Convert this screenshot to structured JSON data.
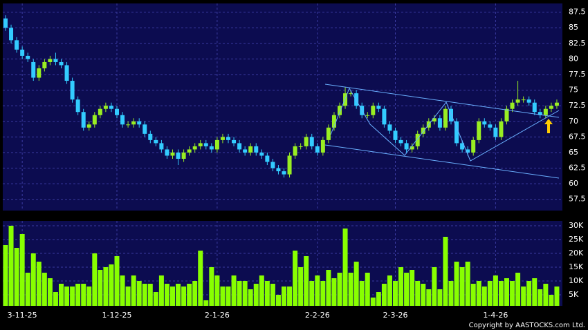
{
  "chart_data": {
    "type": "candlestick",
    "categories": [
      null,
      null,
      null,
      "3-11-25",
      null,
      null,
      null,
      null,
      null,
      null,
      null,
      null,
      null,
      null,
      null,
      null,
      null,
      null,
      null,
      null,
      "1-12-25",
      null,
      null,
      null,
      null,
      null,
      null,
      null,
      null,
      null,
      null,
      null,
      null,
      null,
      null,
      null,
      null,
      null,
      "2-1-26",
      null,
      null,
      null,
      null,
      null,
      null,
      null,
      null,
      null,
      null,
      null,
      null,
      null,
      null,
      null,
      null,
      null,
      "2-2-26",
      null,
      null,
      null,
      null,
      null,
      null,
      null,
      null,
      null,
      null,
      null,
      null,
      null,
      "2-3-26",
      null,
      null,
      null,
      null,
      null,
      null,
      null,
      null,
      null,
      null,
      null,
      null,
      null,
      null,
      null,
      null,
      null,
      "1-4-26",
      null,
      null,
      null,
      null,
      null,
      null,
      null,
      null,
      null,
      null,
      null
    ],
    "open": [
      86.5,
      85,
      83,
      81.5,
      80.5,
      79.5,
      77,
      78.5,
      79.5,
      80,
      79.5,
      79,
      76.5,
      73.5,
      71.5,
      69,
      69.5,
      71,
      72,
      72.5,
      72,
      71,
      69.5,
      69.5,
      70,
      69.5,
      68,
      67,
      66.5,
      65.5,
      64.5,
      65,
      64,
      65,
      65.5,
      66,
      66.5,
      66,
      65.5,
      67,
      67.5,
      67,
      66.5,
      65.5,
      65,
      66,
      65,
      64.5,
      63.5,
      62.5,
      62,
      61.5,
      64.5,
      66,
      66,
      67.5,
      66,
      65,
      67,
      69,
      71,
      72.5,
      74.5,
      74.5,
      72.5,
      71,
      71,
      72.5,
      72,
      69.5,
      68.5,
      67,
      66.5,
      65.5,
      66,
      68,
      69,
      70,
      70.5,
      69,
      72,
      70,
      66.5,
      65.5,
      65,
      67,
      70,
      69.5,
      69,
      67.5,
      70,
      72,
      73,
      73.5,
      73.5,
      73,
      71.5,
      71,
      72,
      72.5
    ],
    "high": [
      87,
      85.5,
      83.5,
      82,
      81,
      80,
      79,
      80,
      80.5,
      81,
      80,
      79.5,
      77,
      74,
      72,
      70,
      71.5,
      72.5,
      73,
      73,
      72.5,
      71.5,
      70,
      70.5,
      70.5,
      70,
      68.5,
      67.5,
      67,
      66,
      65.5,
      65.5,
      65.5,
      66,
      66.5,
      67,
      67,
      66.5,
      67.5,
      68,
      68,
      67.5,
      67,
      66,
      66.5,
      66.5,
      65.5,
      65,
      64,
      63,
      62.5,
      65,
      66.5,
      66.5,
      68,
      68,
      66.5,
      67.5,
      69.5,
      71.5,
      73,
      75.5,
      75,
      75,
      73,
      71.5,
      73,
      73,
      72.5,
      70,
      69,
      67.5,
      67,
      66.5,
      68.5,
      69.5,
      70.5,
      71,
      71,
      72.5,
      72.5,
      70.5,
      67,
      66,
      67.5,
      70.5,
      70.5,
      70,
      69.5,
      70.5,
      72.5,
      73.5,
      76.5,
      74,
      74,
      73.5,
      72,
      72.5,
      73,
      73.5
    ],
    "low": [
      84.5,
      82.5,
      81,
      80,
      79.5,
      76.5,
      76.5,
      78,
      79,
      79,
      78.5,
      76,
      73,
      71,
      68.5,
      68.5,
      69,
      70.5,
      71.5,
      71.5,
      70.5,
      69,
      69,
      69,
      69,
      67.5,
      66.5,
      66,
      65,
      64,
      64,
      63,
      63.5,
      64.5,
      65,
      65.5,
      65.5,
      65,
      65,
      66.5,
      66.5,
      66,
      65,
      64.5,
      64.5,
      64.5,
      64,
      63,
      62,
      61.5,
      61,
      61,
      64,
      65.5,
      65.5,
      65.5,
      64.5,
      64.5,
      66.5,
      68.5,
      70.5,
      72,
      74,
      72,
      70.5,
      70.5,
      70.5,
      71.5,
      69,
      68,
      66.5,
      66,
      65,
      65,
      65.5,
      67.5,
      68.5,
      69.5,
      68.5,
      68.5,
      69.5,
      66,
      65,
      64.5,
      64.5,
      66.5,
      69,
      68.5,
      67,
      67,
      69.5,
      71.5,
      72.5,
      73,
      72.5,
      71,
      70.5,
      70.5,
      71.5,
      72
    ],
    "close": [
      85,
      83,
      81.5,
      80.5,
      80,
      77,
      78.5,
      79.5,
      80,
      79.5,
      79,
      76.5,
      73.5,
      71.5,
      69,
      69.5,
      71,
      72,
      72.5,
      72,
      71,
      69.5,
      69.5,
      70,
      69.5,
      68,
      67,
      66.5,
      65.5,
      64.5,
      65,
      64,
      65,
      65.5,
      66,
      66.5,
      66,
      65.5,
      67,
      67.5,
      67,
      66.5,
      65.5,
      65,
      66,
      65,
      64.5,
      63.5,
      62.5,
      62,
      61.5,
      64.5,
      66,
      66,
      67.5,
      66,
      65,
      67,
      69,
      71,
      72.5,
      74.5,
      74.5,
      72.5,
      71,
      71,
      72.5,
      72,
      69.5,
      68.5,
      67,
      66.5,
      65.5,
      66,
      68,
      69,
      70,
      70.5,
      69,
      72,
      70,
      66.5,
      65.5,
      65,
      67,
      70,
      69.5,
      69,
      67.5,
      70,
      72,
      73,
      73.5,
      73.5,
      73,
      71.5,
      71,
      72,
      72.5,
      73
    ],
    "up_color": "#99ee22",
    "down_color": "#33ccff",
    "ylim": [
      55.7,
      88.9
    ],
    "yticks": [
      57.5,
      60,
      62.5,
      65,
      67.5,
      70,
      72.5,
      75,
      77.5,
      80,
      82.5,
      85,
      87.5
    ],
    "grid": true,
    "volume": {
      "type": "bar",
      "color": "#88ff00",
      "values": [
        23000,
        30000,
        22000,
        27000,
        13000,
        20000,
        17000,
        13000,
        11000,
        6000,
        9000,
        8000,
        8000,
        9000,
        9000,
        8000,
        20000,
        14000,
        15000,
        16000,
        19000,
        12000,
        8000,
        12000,
        10000,
        9000,
        9000,
        6000,
        12000,
        9000,
        8000,
        9000,
        8000,
        9000,
        10000,
        21000,
        3000,
        15000,
        12000,
        8000,
        8000,
        12000,
        10000,
        10000,
        7000,
        9000,
        12000,
        10000,
        9000,
        5000,
        8000,
        8000,
        21000,
        15000,
        19000,
        10000,
        12000,
        10000,
        14000,
        11000,
        13000,
        29000,
        13000,
        17000,
        10000,
        13000,
        4000,
        6000,
        9000,
        12000,
        10000,
        15000,
        13000,
        14000,
        10000,
        9000,
        7000,
        15000,
        7000,
        26000,
        10000,
        17000,
        15000,
        17000,
        9000,
        10000,
        8000,
        10000,
        12000,
        10000,
        11000,
        10000,
        13000,
        8000,
        10000,
        11000,
        7000,
        9000,
        5000,
        8000
      ],
      "ylim": [
        1000,
        31750
      ],
      "yticks": [
        {
          "value": 5000,
          "label": "5K"
        },
        {
          "value": 10000,
          "label": "10K"
        },
        {
          "value": 15000,
          "label": "15K"
        },
        {
          "value": 20000,
          "label": "20K"
        },
        {
          "value": 25000,
          "label": "25K"
        },
        {
          "value": 30000,
          "label": "30K"
        }
      ]
    }
  },
  "copyright": "Copyright by AASTOCKS.com Ltd."
}
